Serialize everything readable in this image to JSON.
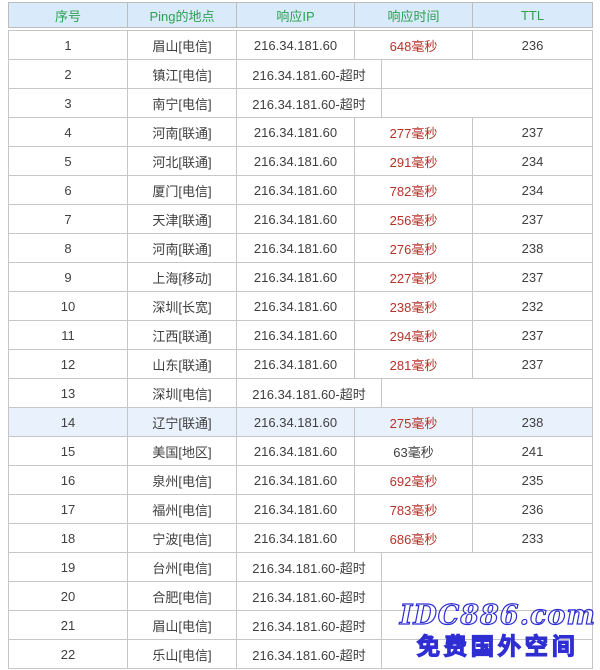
{
  "table": {
    "columns": [
      {
        "key": "index",
        "label": "序号"
      },
      {
        "key": "location",
        "label": "Ping的地点"
      },
      {
        "key": "ip",
        "label": "响应IP"
      },
      {
        "key": "time",
        "label": "响应时间"
      },
      {
        "key": "ttl",
        "label": "TTL"
      }
    ],
    "rows": [
      {
        "index": "1",
        "location": "眉山[电信]",
        "ip": "216.34.181.60",
        "time": "648毫秒",
        "time_alert": true,
        "ttl": "236",
        "timeout": false,
        "highlight": false
      },
      {
        "index": "2",
        "location": "镇江[电信]",
        "ip": "216.34.181.60-超时",
        "time": "",
        "time_alert": false,
        "ttl": "",
        "timeout": true,
        "highlight": false
      },
      {
        "index": "3",
        "location": "南宁[电信]",
        "ip": "216.34.181.60-超时",
        "time": "",
        "time_alert": false,
        "ttl": "",
        "timeout": true,
        "highlight": false
      },
      {
        "index": "4",
        "location": "河南[联通]",
        "ip": "216.34.181.60",
        "time": "277毫秒",
        "time_alert": true,
        "ttl": "237",
        "timeout": false,
        "highlight": false
      },
      {
        "index": "5",
        "location": "河北[联通]",
        "ip": "216.34.181.60",
        "time": "291毫秒",
        "time_alert": true,
        "ttl": "234",
        "timeout": false,
        "highlight": false
      },
      {
        "index": "6",
        "location": "厦门[电信]",
        "ip": "216.34.181.60",
        "time": "782毫秒",
        "time_alert": true,
        "ttl": "234",
        "timeout": false,
        "highlight": false
      },
      {
        "index": "7",
        "location": "天津[联通]",
        "ip": "216.34.181.60",
        "time": "256毫秒",
        "time_alert": true,
        "ttl": "237",
        "timeout": false,
        "highlight": false
      },
      {
        "index": "8",
        "location": "河南[联通]",
        "ip": "216.34.181.60",
        "time": "276毫秒",
        "time_alert": true,
        "ttl": "238",
        "timeout": false,
        "highlight": false
      },
      {
        "index": "9",
        "location": "上海[移动]",
        "ip": "216.34.181.60",
        "time": "227毫秒",
        "time_alert": true,
        "ttl": "237",
        "timeout": false,
        "highlight": false
      },
      {
        "index": "10",
        "location": "深圳[长宽]",
        "ip": "216.34.181.60",
        "time": "238毫秒",
        "time_alert": true,
        "ttl": "232",
        "timeout": false,
        "highlight": false
      },
      {
        "index": "11",
        "location": "江西[联通]",
        "ip": "216.34.181.60",
        "time": "294毫秒",
        "time_alert": true,
        "ttl": "237",
        "timeout": false,
        "highlight": false
      },
      {
        "index": "12",
        "location": "山东[联通]",
        "ip": "216.34.181.60",
        "time": "281毫秒",
        "time_alert": true,
        "ttl": "237",
        "timeout": false,
        "highlight": false
      },
      {
        "index": "13",
        "location": "深圳[电信]",
        "ip": "216.34.181.60-超时",
        "time": "",
        "time_alert": false,
        "ttl": "",
        "timeout": true,
        "highlight": false
      },
      {
        "index": "14",
        "location": "辽宁[联通]",
        "ip": "216.34.181.60",
        "time": "275毫秒",
        "time_alert": true,
        "ttl": "238",
        "timeout": false,
        "highlight": true
      },
      {
        "index": "15",
        "location": "美国[地区]",
        "ip": "216.34.181.60",
        "time": "63毫秒",
        "time_alert": false,
        "ttl": "241",
        "timeout": false,
        "highlight": false
      },
      {
        "index": "16",
        "location": "泉州[电信]",
        "ip": "216.34.181.60",
        "time": "692毫秒",
        "time_alert": true,
        "ttl": "235",
        "timeout": false,
        "highlight": false
      },
      {
        "index": "17",
        "location": "福州[电信]",
        "ip": "216.34.181.60",
        "time": "783毫秒",
        "time_alert": true,
        "ttl": "236",
        "timeout": false,
        "highlight": false
      },
      {
        "index": "18",
        "location": "宁波[电信]",
        "ip": "216.34.181.60",
        "time": "686毫秒",
        "time_alert": true,
        "ttl": "233",
        "timeout": false,
        "highlight": false
      },
      {
        "index": "19",
        "location": "台州[电信]",
        "ip": "216.34.181.60-超时",
        "time": "",
        "time_alert": false,
        "ttl": "",
        "timeout": true,
        "highlight": false
      },
      {
        "index": "20",
        "location": "合肥[电信]",
        "ip": "216.34.181.60-超时",
        "time": "",
        "time_alert": false,
        "ttl": "",
        "timeout": true,
        "highlight": false
      },
      {
        "index": "21",
        "location": "眉山[电信]",
        "ip": "216.34.181.60-超时",
        "time": "",
        "time_alert": false,
        "ttl": "",
        "timeout": true,
        "highlight": false
      },
      {
        "index": "22",
        "location": "乐山[电信]",
        "ip": "216.34.181.60-超时",
        "time": "",
        "time_alert": false,
        "ttl": "",
        "timeout": true,
        "highlight": false
      }
    ]
  },
  "watermark": {
    "line1": "IDC886.com",
    "line2": "免费国外空间"
  },
  "colors": {
    "header_bg": "#d9eafa",
    "header_text": "#2ea052",
    "body_text": "#3f3f3f",
    "time_alert": "#b5332a",
    "border": "#c6c6c6",
    "highlight_row_bg": "#e9f2fc",
    "watermark_blue": "#2e2ed2"
  }
}
